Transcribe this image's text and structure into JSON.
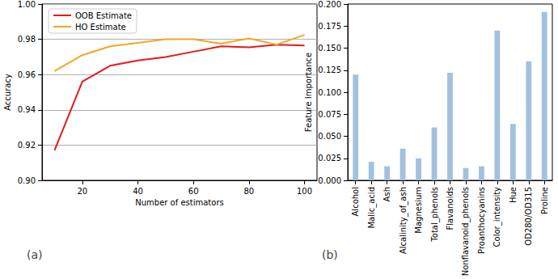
{
  "chart_data": [
    {
      "type": "line",
      "x_label": "Number of estimators",
      "y_label": "Accuracy",
      "annotations": [
        "(a)"
      ],
      "x": [
        10,
        20,
        30,
        40,
        50,
        60,
        70,
        80,
        90,
        100
      ],
      "series": [
        {
          "name": "OOB Estimate",
          "color": "#e31a1c",
          "values": [
            0.917,
            0.956,
            0.965,
            0.968,
            0.97,
            0.973,
            0.976,
            0.9755,
            0.977,
            0.9765
          ]
        },
        {
          "name": "HO Estimate",
          "color": "#f5a623",
          "values": [
            0.962,
            0.971,
            0.976,
            0.978,
            0.98,
            0.98,
            0.9775,
            0.9805,
            0.977,
            0.9825
          ]
        }
      ],
      "xlim": [
        5.5,
        104.5
      ],
      "xticks": [
        20,
        40,
        60,
        80,
        100
      ],
      "ylim": [
        0.9,
        1.0
      ],
      "yticks": [
        {
          "value": 0.9,
          "label": "0.90"
        },
        {
          "value": 0.92,
          "label": "0.92"
        },
        {
          "value": 0.94,
          "label": "0.94"
        },
        {
          "value": 0.96,
          "label": "0.96"
        },
        {
          "value": 0.98,
          "label": "0.98"
        },
        {
          "value": 1.0,
          "label": "1.00"
        }
      ],
      "grid": true,
      "legend": "upper left"
    },
    {
      "type": "bar",
      "y_label": "Feature Importance",
      "annotations": [
        "(b)"
      ],
      "categories": [
        "Alcohol",
        "Malic_acid",
        "Ash",
        "Alcalinity_of_ash",
        "Magnesium",
        "Total_phenols",
        "Flavanoids",
        "Nonflavanoid_phenols",
        "Proanthocyanins",
        "Color_intensity",
        "Hue",
        "OD280/OD315",
        "Proline"
      ],
      "values": [
        0.12,
        0.021,
        0.016,
        0.036,
        0.025,
        0.06,
        0.122,
        0.014,
        0.016,
        0.17,
        0.064,
        0.135,
        0.191
      ],
      "color": "#a3c1dd",
      "ylim": [
        0,
        0.2
      ],
      "yticks": [
        {
          "value": 0,
          "label": "0.000"
        },
        {
          "value": 0.025,
          "label": "0.025"
        },
        {
          "value": 0.05,
          "label": "0.050"
        },
        {
          "value": 0.075,
          "label": "0.075"
        },
        {
          "value": 0.1,
          "label": "0.100"
        },
        {
          "value": 0.125,
          "label": "0.125"
        },
        {
          "value": 0.15,
          "label": "0.150"
        },
        {
          "value": 0.175,
          "label": "0.175"
        },
        {
          "value": 0.2,
          "label": "0.200"
        }
      ],
      "grid": false
    }
  ]
}
